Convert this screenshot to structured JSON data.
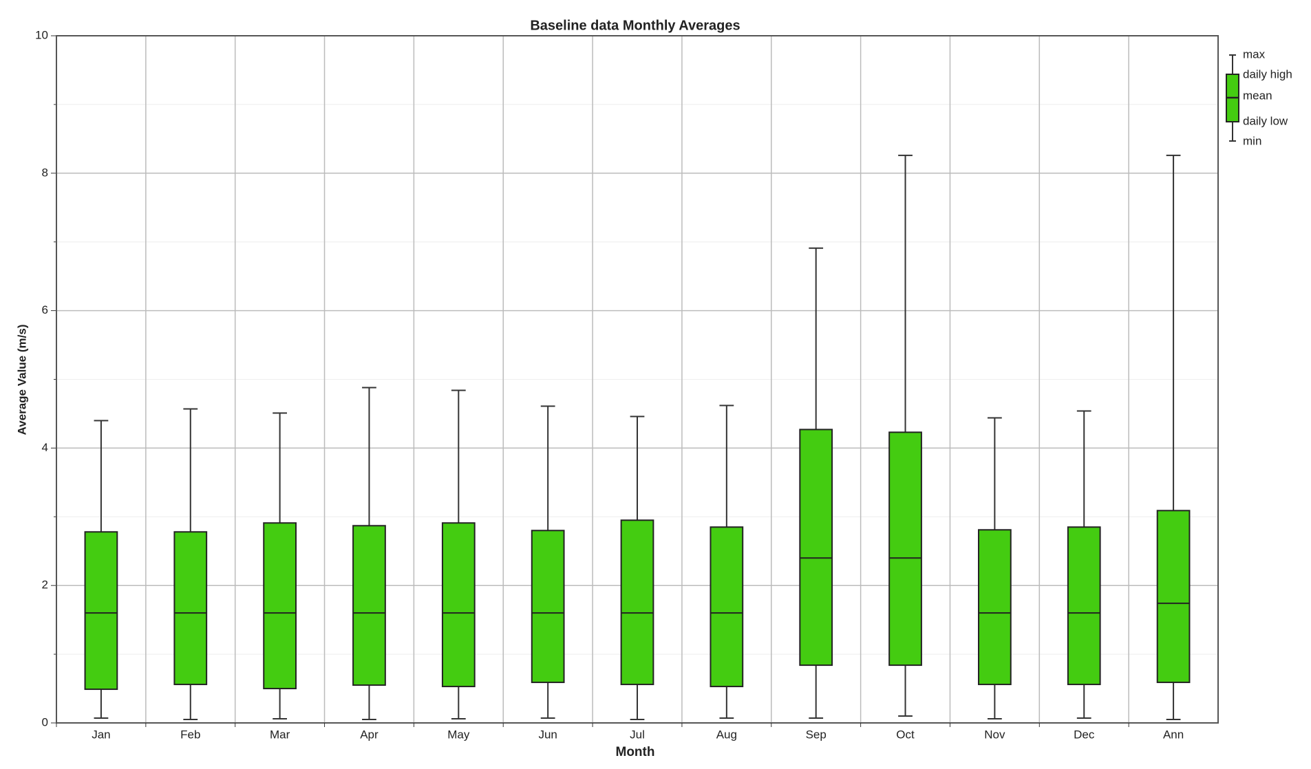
{
  "chart_data": {
    "type": "box",
    "title": "Baseline data Monthly Averages",
    "x_label": "Month",
    "y_label": "Average Value (m/s)",
    "categories": [
      "Jan",
      "Feb",
      "Mar",
      "Apr",
      "May",
      "Jun",
      "Jul",
      "Aug",
      "Sep",
      "Oct",
      "Nov",
      "Dec",
      "Ann"
    ],
    "max": [
      4.4,
      4.57,
      4.51,
      4.88,
      4.84,
      4.61,
      4.46,
      4.62,
      6.91,
      8.26,
      4.44,
      4.54,
      8.26
    ],
    "daily_high": [
      2.78,
      2.78,
      2.91,
      2.87,
      2.91,
      2.8,
      2.95,
      2.85,
      4.27,
      4.23,
      2.81,
      2.85,
      3.09
    ],
    "mean": [
      1.6,
      1.6,
      1.6,
      1.6,
      1.6,
      1.6,
      1.6,
      1.6,
      2.4,
      2.4,
      1.6,
      1.6,
      1.74
    ],
    "daily_low": [
      0.49,
      0.56,
      0.5,
      0.55,
      0.53,
      0.59,
      0.56,
      0.53,
      0.84,
      0.84,
      0.56,
      0.56,
      0.59
    ],
    "min": [
      0.07,
      0.05,
      0.06,
      0.05,
      0.06,
      0.07,
      0.05,
      0.07,
      0.07,
      0.1,
      0.06,
      0.07,
      0.05
    ],
    "color": "#44cc11",
    "ylim": [
      0,
      10
    ],
    "yticks": [
      0,
      2,
      4,
      6,
      8,
      10
    ],
    "minor_yticks": [
      1,
      3,
      5,
      7,
      9
    ],
    "grid": true,
    "legend": {
      "max": "max",
      "daily_high": "daily high",
      "mean": "mean",
      "daily_low": "daily low",
      "min": "min"
    },
    "legend_position": "right"
  }
}
